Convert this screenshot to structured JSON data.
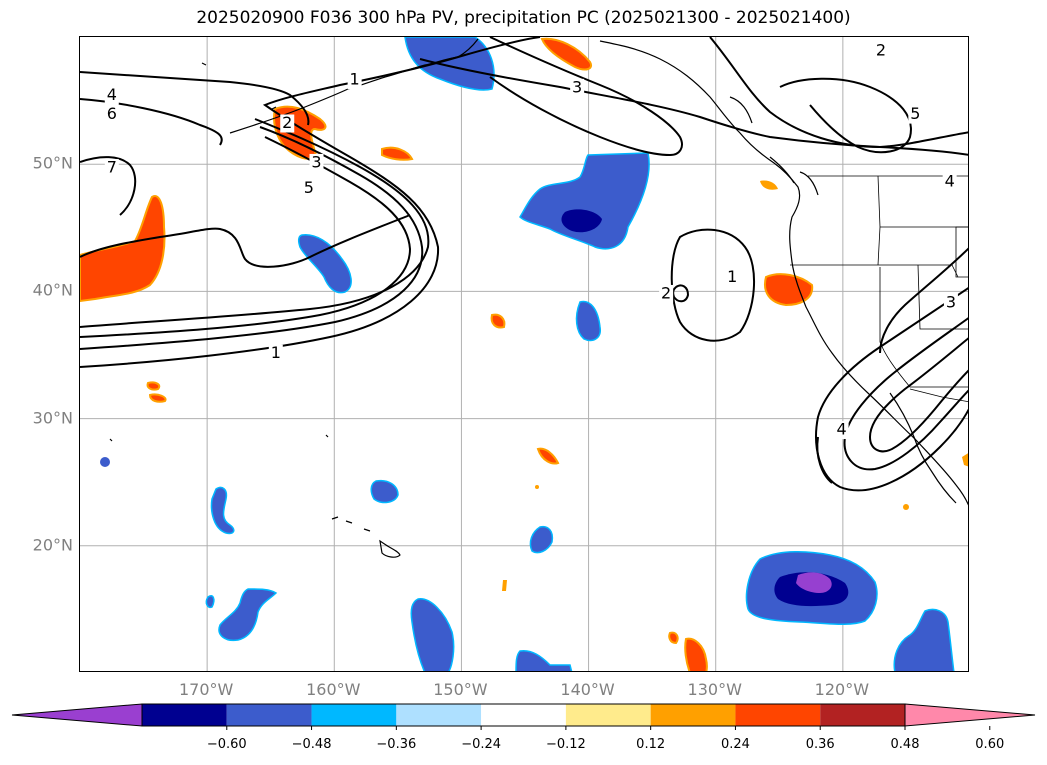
{
  "title": "2025020900 F036 300 hPa PV, precipitation PC (2025021300 - 2025021400)",
  "map": {
    "lat_range": [
      10,
      60
    ],
    "lon_range": [
      -180,
      -110
    ],
    "grid": true,
    "lat_labels": [
      {
        "lat": 50,
        "text": "50°N"
      },
      {
        "lat": 40,
        "text": "40°N"
      },
      {
        "lat": 30,
        "text": "30°N"
      },
      {
        "lat": 20,
        "text": "20°N"
      }
    ],
    "lon_labels": [
      {
        "lon": -170,
        "text": "170°W"
      },
      {
        "lon": -160,
        "text": "160°W"
      },
      {
        "lon": -150,
        "text": "150°W"
      },
      {
        "lon": -140,
        "text": "140°W"
      },
      {
        "lon": -130,
        "text": "130°W"
      },
      {
        "lon": -120,
        "text": "120°W"
      }
    ],
    "contour_labels": [
      {
        "lon": -177.5,
        "lat": 55.4,
        "text": "4"
      },
      {
        "lon": -177.5,
        "lat": 53.9,
        "text": "6"
      },
      {
        "lon": -177.5,
        "lat": 49.7,
        "text": "7"
      },
      {
        "lon": -163.7,
        "lat": 53.2,
        "text": "2"
      },
      {
        "lon": -161.4,
        "lat": 50.1,
        "text": "3"
      },
      {
        "lon": -162.0,
        "lat": 48.1,
        "text": "5"
      },
      {
        "lon": -158.4,
        "lat": 56.6,
        "text": "1"
      },
      {
        "lon": -164.6,
        "lat": 35.1,
        "text": "1"
      },
      {
        "lon": -140.9,
        "lat": 56.0,
        "text": "3"
      },
      {
        "lon": -117.0,
        "lat": 58.9,
        "text": "2"
      },
      {
        "lon": -114.3,
        "lat": 53.9,
        "text": "5"
      },
      {
        "lon": -133.9,
        "lat": 39.8,
        "text": "2"
      },
      {
        "lon": -128.7,
        "lat": 41.1,
        "text": "1"
      },
      {
        "lon": -120.1,
        "lat": 29.1,
        "text": "4"
      },
      {
        "lon": -111.5,
        "lat": 39.1,
        "text": "3"
      },
      {
        "lon": -111.6,
        "lat": 48.6,
        "text": "4"
      }
    ],
    "colors": {
      "contour": "#000000",
      "grid": "#b0b0b0",
      "neg_strong": "#000090",
      "neg_mid": "#3c5ccc",
      "neg_light": "#00b8ff",
      "neg_extreme": "#9640d0",
      "pos_light": "#ffeb8c",
      "pos_mid": "#ffa000",
      "pos_strong": "#ff4500"
    }
  },
  "colorbar": {
    "colors": [
      "#9a3fd0",
      "#000090",
      "#3c5ccc",
      "#00b8ff",
      "#aee0ff",
      "#ffffff",
      "#ffeb8c",
      "#ffa000",
      "#ff4500",
      "#b22222",
      "#ff88aa"
    ],
    "ticks": [
      "−0.60",
      "−0.48",
      "−0.36",
      "−0.24",
      "−0.12",
      "0.12",
      "0.24",
      "0.36",
      "0.48",
      "0.60"
    ]
  }
}
